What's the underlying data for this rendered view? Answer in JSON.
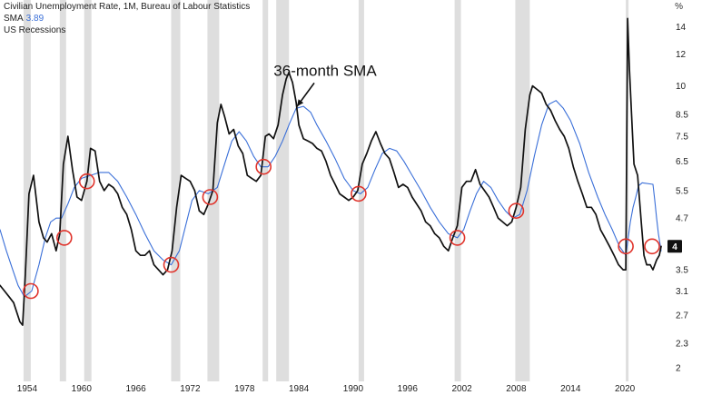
{
  "legend": {
    "title": "Civilian Unemployment Rate, 1M, Bureau of Labour Statistics",
    "sma_label": "SMA",
    "sma_value": "3.89",
    "recessions_label": "US Recessions"
  },
  "colors": {
    "series": "#111111",
    "sma": "#3a6fd8",
    "recession": "#dedede",
    "marker": "#e0332b",
    "badge": "#111111"
  },
  "chart_data": {
    "type": "line",
    "title": "Civilian Unemployment Rate, 1M, Bureau of Labour Statistics",
    "unit": "%",
    "yscale": "log",
    "xlabel": "",
    "ylabel": "%",
    "ylim": [
      1.85,
      16.0
    ],
    "xlim": [
      1951.0,
      2024.4
    ],
    "x_ticks": [
      1954,
      1960,
      1966,
      1972,
      1978,
      1984,
      1990,
      1996,
      2002,
      2008,
      2014,
      2020
    ],
    "y_ticks": [
      14,
      12,
      10,
      8.5,
      7.5,
      6.5,
      5.5,
      4.7,
      3.5,
      3.1,
      2.7,
      2.3,
      2
    ],
    "last_value_badge": "4",
    "annotation": {
      "text": "36-month SMA",
      "x": 1986.9,
      "y": 10.6,
      "arrow_to_x": 1983.8,
      "arrow_to_y": 8.9
    },
    "recessions": [
      [
        1953.6,
        1954.4
      ],
      [
        1957.6,
        1958.3
      ],
      [
        1960.3,
        1961.1
      ],
      [
        1969.9,
        1970.9
      ],
      [
        1973.9,
        1975.2
      ],
      [
        1980.0,
        1980.6
      ],
      [
        1981.5,
        1982.9
      ],
      [
        1990.6,
        1991.2
      ],
      [
        2001.2,
        2001.9
      ],
      [
        2007.9,
        2009.5
      ],
      [
        2020.1,
        2020.4
      ]
    ],
    "circles": [
      {
        "x": 1954.4,
        "y": 3.1
      },
      {
        "x": 1958.1,
        "y": 4.2
      },
      {
        "x": 1960.6,
        "y": 5.8
      },
      {
        "x": 1969.9,
        "y": 3.6
      },
      {
        "x": 1974.2,
        "y": 5.3
      },
      {
        "x": 1980.1,
        "y": 6.3
      },
      {
        "x": 1990.6,
        "y": 5.4
      },
      {
        "x": 2001.5,
        "y": 4.2
      },
      {
        "x": 2008.0,
        "y": 4.9
      },
      {
        "x": 2020.1,
        "y": 4.0
      },
      {
        "x": 2023.0,
        "y": 4.0
      }
    ],
    "series": [
      {
        "name": "Civilian Unemployment Rate",
        "points": [
          [
            1951.0,
            3.2
          ],
          [
            1951.5,
            3.1
          ],
          [
            1952.0,
            3.0
          ],
          [
            1952.5,
            2.9
          ],
          [
            1953.2,
            2.6
          ],
          [
            1953.5,
            2.55
          ],
          [
            1953.8,
            3.4
          ],
          [
            1954.2,
            5.4
          ],
          [
            1954.7,
            6.0
          ],
          [
            1955.3,
            4.6
          ],
          [
            1955.8,
            4.2
          ],
          [
            1956.2,
            4.1
          ],
          [
            1956.7,
            4.3
          ],
          [
            1957.2,
            3.9
          ],
          [
            1957.6,
            4.3
          ],
          [
            1958.0,
            6.4
          ],
          [
            1958.5,
            7.5
          ],
          [
            1959.0,
            6.2
          ],
          [
            1959.5,
            5.3
          ],
          [
            1960.0,
            5.2
          ],
          [
            1960.6,
            5.8
          ],
          [
            1961.0,
            7.0
          ],
          [
            1961.5,
            6.9
          ],
          [
            1962.0,
            5.8
          ],
          [
            1962.5,
            5.5
          ],
          [
            1963.0,
            5.7
          ],
          [
            1963.5,
            5.6
          ],
          [
            1964.0,
            5.4
          ],
          [
            1964.5,
            5.0
          ],
          [
            1965.0,
            4.8
          ],
          [
            1965.5,
            4.4
          ],
          [
            1966.0,
            3.9
          ],
          [
            1966.5,
            3.8
          ],
          [
            1967.0,
            3.8
          ],
          [
            1967.5,
            3.9
          ],
          [
            1968.0,
            3.6
          ],
          [
            1968.5,
            3.5
          ],
          [
            1969.0,
            3.4
          ],
          [
            1969.5,
            3.5
          ],
          [
            1970.0,
            3.9
          ],
          [
            1970.5,
            5.0
          ],
          [
            1971.0,
            6.0
          ],
          [
            1971.5,
            5.9
          ],
          [
            1972.0,
            5.8
          ],
          [
            1972.5,
            5.5
          ],
          [
            1973.0,
            4.9
          ],
          [
            1973.5,
            4.8
          ],
          [
            1974.0,
            5.1
          ],
          [
            1974.5,
            5.5
          ],
          [
            1975.0,
            8.1
          ],
          [
            1975.4,
            9.0
          ],
          [
            1975.8,
            8.4
          ],
          [
            1976.3,
            7.6
          ],
          [
            1976.8,
            7.8
          ],
          [
            1977.3,
            7.1
          ],
          [
            1977.8,
            6.8
          ],
          [
            1978.3,
            6.0
          ],
          [
            1978.8,
            5.9
          ],
          [
            1979.3,
            5.8
          ],
          [
            1979.8,
            6.0
          ],
          [
            1980.3,
            7.5
          ],
          [
            1980.7,
            7.6
          ],
          [
            1981.2,
            7.4
          ],
          [
            1981.7,
            8.0
          ],
          [
            1982.2,
            9.5
          ],
          [
            1982.6,
            10.4
          ],
          [
            1982.9,
            10.8
          ],
          [
            1983.3,
            10.2
          ],
          [
            1983.7,
            9.1
          ],
          [
            1984.0,
            8.0
          ],
          [
            1984.5,
            7.4
          ],
          [
            1985.0,
            7.3
          ],
          [
            1985.5,
            7.2
          ],
          [
            1986.0,
            7.0
          ],
          [
            1986.5,
            6.9
          ],
          [
            1987.0,
            6.5
          ],
          [
            1987.5,
            6.0
          ],
          [
            1988.0,
            5.7
          ],
          [
            1988.5,
            5.4
          ],
          [
            1989.0,
            5.3
          ],
          [
            1989.5,
            5.2
          ],
          [
            1990.0,
            5.3
          ],
          [
            1990.5,
            5.5
          ],
          [
            1991.0,
            6.4
          ],
          [
            1991.5,
            6.8
          ],
          [
            1992.0,
            7.3
          ],
          [
            1992.5,
            7.7
          ],
          [
            1993.0,
            7.2
          ],
          [
            1993.5,
            6.8
          ],
          [
            1994.0,
            6.6
          ],
          [
            1994.5,
            6.1
          ],
          [
            1995.0,
            5.6
          ],
          [
            1995.5,
            5.7
          ],
          [
            1996.0,
            5.6
          ],
          [
            1996.5,
            5.3
          ],
          [
            1997.0,
            5.1
          ],
          [
            1997.5,
            4.9
          ],
          [
            1998.0,
            4.6
          ],
          [
            1998.5,
            4.5
          ],
          [
            1999.0,
            4.3
          ],
          [
            1999.5,
            4.2
          ],
          [
            2000.0,
            4.0
          ],
          [
            2000.5,
            3.9
          ],
          [
            2001.0,
            4.2
          ],
          [
            2001.5,
            4.5
          ],
          [
            2002.0,
            5.6
          ],
          [
            2002.5,
            5.8
          ],
          [
            2003.0,
            5.8
          ],
          [
            2003.5,
            6.2
          ],
          [
            2004.0,
            5.7
          ],
          [
            2004.5,
            5.5
          ],
          [
            2005.0,
            5.3
          ],
          [
            2005.5,
            5.0
          ],
          [
            2006.0,
            4.7
          ],
          [
            2006.5,
            4.6
          ],
          [
            2007.0,
            4.5
          ],
          [
            2007.5,
            4.6
          ],
          [
            2008.0,
            5.0
          ],
          [
            2008.5,
            5.6
          ],
          [
            2009.0,
            7.8
          ],
          [
            2009.5,
            9.5
          ],
          [
            2009.8,
            10.0
          ],
          [
            2010.3,
            9.8
          ],
          [
            2010.8,
            9.6
          ],
          [
            2011.3,
            9.0
          ],
          [
            2011.8,
            8.7
          ],
          [
            2012.3,
            8.2
          ],
          [
            2012.8,
            7.8
          ],
          [
            2013.3,
            7.5
          ],
          [
            2013.8,
            7.0
          ],
          [
            2014.3,
            6.3
          ],
          [
            2014.8,
            5.8
          ],
          [
            2015.3,
            5.4
          ],
          [
            2015.8,
            5.0
          ],
          [
            2016.3,
            5.0
          ],
          [
            2016.8,
            4.8
          ],
          [
            2017.3,
            4.4
          ],
          [
            2017.8,
            4.2
          ],
          [
            2018.3,
            4.0
          ],
          [
            2018.8,
            3.8
          ],
          [
            2019.3,
            3.6
          ],
          [
            2019.8,
            3.5
          ],
          [
            2020.1,
            3.5
          ],
          [
            2020.3,
            14.7
          ],
          [
            2020.5,
            11.0
          ],
          [
            2020.8,
            7.9
          ],
          [
            2021.0,
            6.4
          ],
          [
            2021.4,
            6.0
          ],
          [
            2021.8,
            4.6
          ],
          [
            2022.1,
            3.8
          ],
          [
            2022.4,
            3.6
          ],
          [
            2022.8,
            3.6
          ],
          [
            2023.1,
            3.5
          ],
          [
            2023.5,
            3.7
          ],
          [
            2023.8,
            3.8
          ],
          [
            2024.0,
            4.0
          ]
        ]
      },
      {
        "name": "36-month SMA",
        "points": [
          [
            1951.0,
            4.4
          ],
          [
            1951.7,
            3.9
          ],
          [
            1952.4,
            3.5
          ],
          [
            1953.0,
            3.2
          ],
          [
            1953.7,
            3.0
          ],
          [
            1954.5,
            3.1
          ],
          [
            1955.3,
            3.6
          ],
          [
            1956.0,
            4.2
          ],
          [
            1956.6,
            4.6
          ],
          [
            1957.2,
            4.7
          ],
          [
            1957.8,
            4.7
          ],
          [
            1958.5,
            5.1
          ],
          [
            1959.2,
            5.6
          ],
          [
            1960.0,
            5.9
          ],
          [
            1961.0,
            6.0
          ],
          [
            1962.0,
            6.1
          ],
          [
            1963.0,
            6.1
          ],
          [
            1964.0,
            5.8
          ],
          [
            1965.0,
            5.3
          ],
          [
            1966.0,
            4.8
          ],
          [
            1967.0,
            4.3
          ],
          [
            1968.0,
            3.9
          ],
          [
            1969.0,
            3.7
          ],
          [
            1969.9,
            3.6
          ],
          [
            1970.8,
            3.9
          ],
          [
            1971.5,
            4.5
          ],
          [
            1972.2,
            5.2
          ],
          [
            1973.0,
            5.5
          ],
          [
            1974.0,
            5.4
          ],
          [
            1975.0,
            5.6
          ],
          [
            1975.8,
            6.4
          ],
          [
            1976.6,
            7.3
          ],
          [
            1977.4,
            7.7
          ],
          [
            1978.2,
            7.3
          ],
          [
            1979.0,
            6.7
          ],
          [
            1979.8,
            6.3
          ],
          [
            1980.6,
            6.3
          ],
          [
            1981.4,
            6.7
          ],
          [
            1982.2,
            7.3
          ],
          [
            1983.0,
            8.1
          ],
          [
            1983.7,
            8.8
          ],
          [
            1984.5,
            8.9
          ],
          [
            1985.3,
            8.6
          ],
          [
            1986.0,
            8.0
          ],
          [
            1987.0,
            7.3
          ],
          [
            1988.0,
            6.6
          ],
          [
            1989.0,
            5.9
          ],
          [
            1990.0,
            5.5
          ],
          [
            1990.8,
            5.4
          ],
          [
            1991.6,
            5.6
          ],
          [
            1992.4,
            6.2
          ],
          [
            1993.2,
            6.8
          ],
          [
            1994.0,
            7.0
          ],
          [
            1994.8,
            6.9
          ],
          [
            1995.6,
            6.5
          ],
          [
            1996.5,
            6.0
          ],
          [
            1997.5,
            5.5
          ],
          [
            1998.5,
            5.0
          ],
          [
            1999.5,
            4.6
          ],
          [
            2000.5,
            4.3
          ],
          [
            2001.5,
            4.2
          ],
          [
            2002.2,
            4.4
          ],
          [
            2002.9,
            4.9
          ],
          [
            2003.6,
            5.4
          ],
          [
            2004.4,
            5.8
          ],
          [
            2005.2,
            5.6
          ],
          [
            2006.0,
            5.2
          ],
          [
            2006.8,
            4.9
          ],
          [
            2007.6,
            4.7
          ],
          [
            2008.4,
            4.8
          ],
          [
            2009.2,
            5.5
          ],
          [
            2010.0,
            6.7
          ],
          [
            2010.8,
            8.0
          ],
          [
            2011.6,
            9.0
          ],
          [
            2012.4,
            9.2
          ],
          [
            2013.2,
            8.8
          ],
          [
            2014.0,
            8.2
          ],
          [
            2015.0,
            7.2
          ],
          [
            2016.0,
            6.1
          ],
          [
            2017.0,
            5.3
          ],
          [
            2017.8,
            4.8
          ],
          [
            2018.6,
            4.4
          ],
          [
            2019.4,
            4.0
          ],
          [
            2020.1,
            3.8
          ],
          [
            2020.3,
            4.1
          ],
          [
            2020.6,
            4.6
          ],
          [
            2020.9,
            5.0
          ],
          [
            2021.2,
            5.3
          ],
          [
            2021.5,
            5.65
          ],
          [
            2021.9,
            5.75
          ],
          [
            2023.1,
            5.7
          ],
          [
            2023.3,
            5.2
          ],
          [
            2023.5,
            4.7
          ],
          [
            2023.7,
            4.3
          ],
          [
            2024.0,
            3.9
          ]
        ]
      }
    ]
  }
}
